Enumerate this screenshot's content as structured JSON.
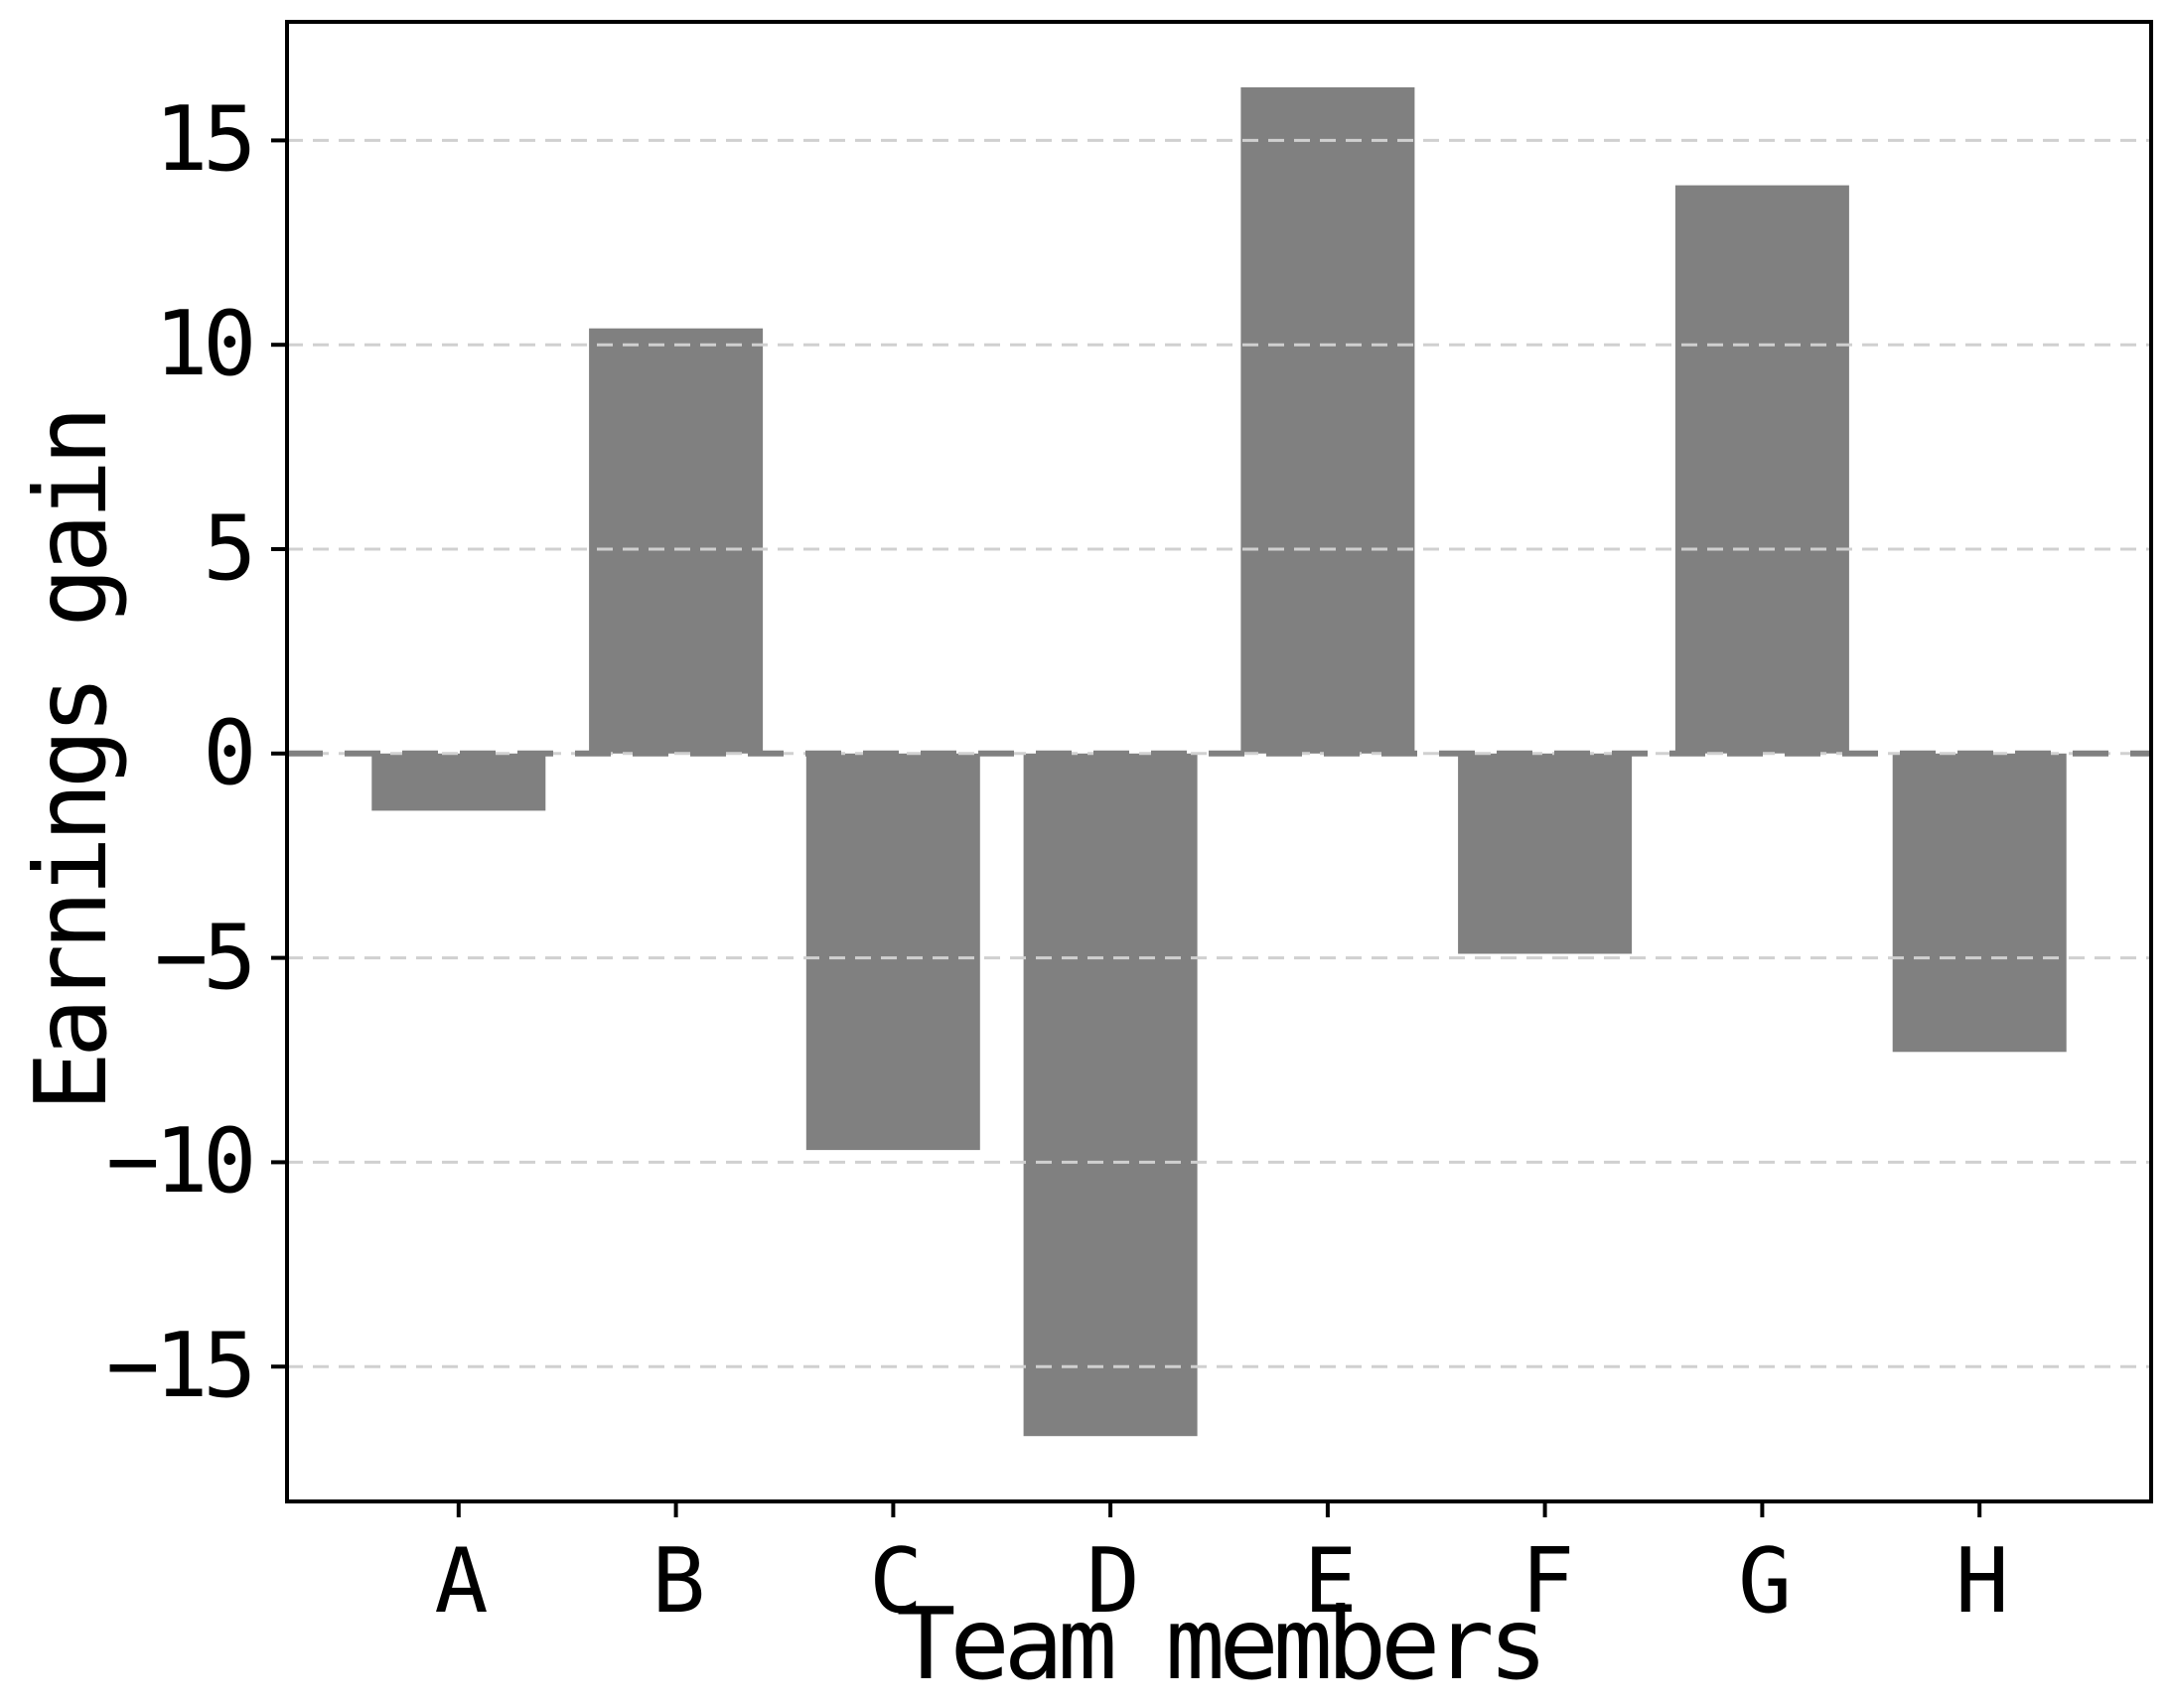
{
  "chart_data": {
    "type": "bar",
    "title": "",
    "xlabel": "Team members",
    "ylabel": "Earnings gain",
    "categories": [
      "A",
      "B",
      "C",
      "D",
      "E",
      "F",
      "G",
      "H"
    ],
    "values": [
      -1.4,
      10.4,
      -9.7,
      -16.7,
      16.3,
      -4.9,
      13.9,
      -7.3
    ],
    "yticks": [
      -15,
      -10,
      -5,
      0,
      5,
      10,
      15
    ],
    "ytick_labels": [
      "−15",
      "−10",
      "−5",
      "0",
      "5",
      "10",
      "15"
    ],
    "ylim": [
      -18.3,
      17.9
    ],
    "grid": true,
    "grid_style": "dashed",
    "legend": "none",
    "bar_color": "#808080",
    "grid_color": "#d0d0d0",
    "zero_line_color": "#808080",
    "spine_color": "#000000"
  }
}
